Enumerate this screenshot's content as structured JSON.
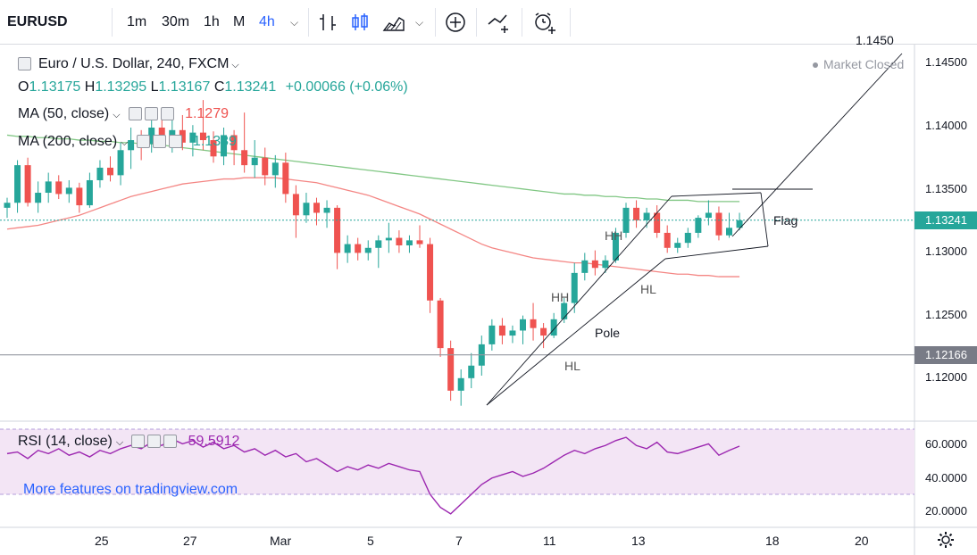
{
  "toolbar": {
    "symbol": "EURUSD",
    "intervals": [
      "1m",
      "30m",
      "1h",
      "M",
      "4h"
    ],
    "active_interval": "4h"
  },
  "legend": {
    "title": "Euro / U.S. Dollar, 240, FXCM",
    "ohlc": {
      "o_label": "O",
      "o": "1.13175",
      "h_label": "H",
      "h": "1.13295",
      "l_label": "L",
      "l": "1.13167",
      "c_label": "C",
      "c": "1.13241",
      "change": "+0.00066 (+0.06%)"
    },
    "ma50": {
      "label": "MA (50, close)",
      "value": "1.1279"
    },
    "ma200": {
      "label": "MA (200, close)",
      "value": "1.1339"
    },
    "rsi": {
      "label": "RSI (14, close)",
      "value": "59.5912"
    }
  },
  "status": {
    "market": "Market Closed"
  },
  "promo": {
    "text": "More features on tradingview.com"
  },
  "annotations": {
    "target": "1.1450",
    "flag": "Flag",
    "pole": "Pole",
    "hh1": "HH",
    "hh2": "HH",
    "hl1": "HL",
    "hl2": "HL"
  },
  "price_axis": {
    "ticks": [
      "1.14500",
      "1.14000",
      "1.13500",
      "1.13000",
      "1.12500",
      "1.12000"
    ],
    "last_price": "1.13241",
    "line_price": "1.12166"
  },
  "rsi_axis": {
    "ticks": [
      "60.0000",
      "40.0000",
      "20.0000"
    ]
  },
  "time_axis": {
    "ticks": [
      "25",
      "27",
      "Mar",
      "5",
      "7",
      "11",
      "13",
      "18",
      "20"
    ]
  },
  "colors": {
    "up": "#26a69a",
    "down": "#ef5350",
    "ma50": "#ef5350",
    "ma200": "#4caf50",
    "rsi": "#9c27b0",
    "accent": "#2962ff"
  },
  "chart_data": {
    "type": "candlestick",
    "title": "Euro / U.S. Dollar, 240, FXCM",
    "ylim": [
      1.1165,
      1.1465
    ],
    "candles": [
      {
        "t": "Feb-22",
        "o": 1.1334,
        "h": 1.1342,
        "l": 1.1326,
        "c": 1.1338
      },
      {
        "t": "Feb-22",
        "o": 1.1338,
        "h": 1.1372,
        "l": 1.133,
        "c": 1.1368
      },
      {
        "t": "Feb-22",
        "o": 1.1368,
        "h": 1.1374,
        "l": 1.1335,
        "c": 1.1338
      },
      {
        "t": "Feb-25",
        "o": 1.1338,
        "h": 1.1355,
        "l": 1.133,
        "c": 1.1346
      },
      {
        "t": "Feb-25",
        "o": 1.1346,
        "h": 1.1362,
        "l": 1.1338,
        "c": 1.1355
      },
      {
        "t": "Feb-25",
        "o": 1.1355,
        "h": 1.136,
        "l": 1.1341,
        "c": 1.1345
      },
      {
        "t": "Feb-25",
        "o": 1.1345,
        "h": 1.1356,
        "l": 1.1338,
        "c": 1.135
      },
      {
        "t": "Feb-25",
        "o": 1.135,
        "h": 1.1354,
        "l": 1.133,
        "c": 1.1336
      },
      {
        "t": "Feb-26",
        "o": 1.1336,
        "h": 1.1362,
        "l": 1.1334,
        "c": 1.1356
      },
      {
        "t": "Feb-26",
        "o": 1.1356,
        "h": 1.1372,
        "l": 1.135,
        "c": 1.1366
      },
      {
        "t": "Feb-26",
        "o": 1.1366,
        "h": 1.1375,
        "l": 1.1355,
        "c": 1.136
      },
      {
        "t": "Feb-26",
        "o": 1.136,
        "h": 1.1386,
        "l": 1.1352,
        "c": 1.138
      },
      {
        "t": "Feb-26",
        "o": 1.138,
        "h": 1.1398,
        "l": 1.1365,
        "c": 1.1388
      },
      {
        "t": "Feb-26",
        "o": 1.1388,
        "h": 1.1396,
        "l": 1.1372,
        "c": 1.1385
      },
      {
        "t": "Feb-27",
        "o": 1.1385,
        "h": 1.1405,
        "l": 1.1378,
        "c": 1.1398
      },
      {
        "t": "Feb-27",
        "o": 1.1398,
        "h": 1.1412,
        "l": 1.1385,
        "c": 1.139
      },
      {
        "t": "Feb-27",
        "o": 1.139,
        "h": 1.1404,
        "l": 1.1378,
        "c": 1.1396
      },
      {
        "t": "Feb-27",
        "o": 1.1396,
        "h": 1.1408,
        "l": 1.138,
        "c": 1.1386
      },
      {
        "t": "Feb-28",
        "o": 1.1386,
        "h": 1.14,
        "l": 1.1375,
        "c": 1.1394
      },
      {
        "t": "Feb-28",
        "o": 1.1394,
        "h": 1.142,
        "l": 1.138,
        "c": 1.1388
      },
      {
        "t": "Feb-28",
        "o": 1.1388,
        "h": 1.1395,
        "l": 1.137,
        "c": 1.1375
      },
      {
        "t": "Feb-28",
        "o": 1.1375,
        "h": 1.1398,
        "l": 1.1368,
        "c": 1.1392
      },
      {
        "t": "Mar-01",
        "o": 1.1392,
        "h": 1.1396,
        "l": 1.1368,
        "c": 1.138
      },
      {
        "t": "Mar-01",
        "o": 1.138,
        "h": 1.141,
        "l": 1.1362,
        "c": 1.1368
      },
      {
        "t": "Mar-01",
        "o": 1.1368,
        "h": 1.1388,
        "l": 1.1358,
        "c": 1.1374
      },
      {
        "t": "Mar-04",
        "o": 1.1374,
        "h": 1.1382,
        "l": 1.1352,
        "c": 1.136
      },
      {
        "t": "Mar-04",
        "o": 1.136,
        "h": 1.1376,
        "l": 1.135,
        "c": 1.137
      },
      {
        "t": "Mar-04",
        "o": 1.137,
        "h": 1.1378,
        "l": 1.1338,
        "c": 1.1345
      },
      {
        "t": "Mar-05",
        "o": 1.1345,
        "h": 1.1352,
        "l": 1.131,
        "c": 1.1328
      },
      {
        "t": "Mar-05",
        "o": 1.1328,
        "h": 1.1346,
        "l": 1.1322,
        "c": 1.1338
      },
      {
        "t": "Mar-05",
        "o": 1.1338,
        "h": 1.1342,
        "l": 1.132,
        "c": 1.133
      },
      {
        "t": "Mar-05",
        "o": 1.133,
        "h": 1.134,
        "l": 1.1318,
        "c": 1.1334
      },
      {
        "t": "Mar-06",
        "o": 1.1334,
        "h": 1.1336,
        "l": 1.1285,
        "c": 1.1298
      },
      {
        "t": "Mar-06",
        "o": 1.1298,
        "h": 1.1312,
        "l": 1.129,
        "c": 1.1305
      },
      {
        "t": "Mar-06",
        "o": 1.1305,
        "h": 1.131,
        "l": 1.1292,
        "c": 1.1298
      },
      {
        "t": "Mar-06",
        "o": 1.1298,
        "h": 1.1308,
        "l": 1.1292,
        "c": 1.1302
      },
      {
        "t": "Mar-07",
        "o": 1.1302,
        "h": 1.1312,
        "l": 1.1286,
        "c": 1.1308
      },
      {
        "t": "Mar-07",
        "o": 1.1308,
        "h": 1.1322,
        "l": 1.1298,
        "c": 1.131
      },
      {
        "t": "Mar-07",
        "o": 1.131,
        "h": 1.1316,
        "l": 1.1298,
        "c": 1.1304
      },
      {
        "t": "Mar-07",
        "o": 1.1304,
        "h": 1.1312,
        "l": 1.1298,
        "c": 1.1308
      },
      {
        "t": "Mar-07",
        "o": 1.1308,
        "h": 1.132,
        "l": 1.1302,
        "c": 1.1305
      },
      {
        "t": "Mar-07",
        "o": 1.1305,
        "h": 1.131,
        "l": 1.125,
        "c": 1.126
      },
      {
        "t": "Mar-08",
        "o": 1.126,
        "h": 1.1262,
        "l": 1.1215,
        "c": 1.1222
      },
      {
        "t": "Mar-08",
        "o": 1.1222,
        "h": 1.1228,
        "l": 1.118,
        "c": 1.1188
      },
      {
        "t": "Mar-08",
        "o": 1.1188,
        "h": 1.1205,
        "l": 1.1176,
        "c": 1.1198
      },
      {
        "t": "Mar-08",
        "o": 1.1198,
        "h": 1.1218,
        "l": 1.119,
        "c": 1.1208
      },
      {
        "t": "Mar-11",
        "o": 1.1208,
        "h": 1.1232,
        "l": 1.12,
        "c": 1.1225
      },
      {
        "t": "Mar-11",
        "o": 1.1225,
        "h": 1.1245,
        "l": 1.122,
        "c": 1.124
      },
      {
        "t": "Mar-11",
        "o": 1.124,
        "h": 1.1246,
        "l": 1.1225,
        "c": 1.1232
      },
      {
        "t": "Mar-11",
        "o": 1.1232,
        "h": 1.124,
        "l": 1.1226,
        "c": 1.1236
      },
      {
        "t": "Mar-11",
        "o": 1.1236,
        "h": 1.1248,
        "l": 1.1225,
        "c": 1.1245
      },
      {
        "t": "Mar-12",
        "o": 1.1245,
        "h": 1.1258,
        "l": 1.1228,
        "c": 1.1238
      },
      {
        "t": "Mar-12",
        "o": 1.1238,
        "h": 1.1242,
        "l": 1.1222,
        "c": 1.1232
      },
      {
        "t": "Mar-12",
        "o": 1.1232,
        "h": 1.125,
        "l": 1.123,
        "c": 1.1245
      },
      {
        "t": "Mar-12",
        "o": 1.1245,
        "h": 1.1262,
        "l": 1.1242,
        "c": 1.1258
      },
      {
        "t": "Mar-12",
        "o": 1.1258,
        "h": 1.129,
        "l": 1.125,
        "c": 1.1282
      },
      {
        "t": "Mar-13",
        "o": 1.1282,
        "h": 1.1298,
        "l": 1.1276,
        "c": 1.1292
      },
      {
        "t": "Mar-13",
        "o": 1.1292,
        "h": 1.13,
        "l": 1.128,
        "c": 1.1286
      },
      {
        "t": "Mar-13",
        "o": 1.1286,
        "h": 1.1296,
        "l": 1.1282,
        "c": 1.1292
      },
      {
        "t": "Mar-13",
        "o": 1.1292,
        "h": 1.1318,
        "l": 1.129,
        "c": 1.1314
      },
      {
        "t": "Mar-14",
        "o": 1.1314,
        "h": 1.1338,
        "l": 1.131,
        "c": 1.1334
      },
      {
        "t": "Mar-14",
        "o": 1.1334,
        "h": 1.134,
        "l": 1.1318,
        "c": 1.1324
      },
      {
        "t": "Mar-14",
        "o": 1.1324,
        "h": 1.1334,
        "l": 1.1318,
        "c": 1.133
      },
      {
        "t": "Mar-14",
        "o": 1.133,
        "h": 1.1336,
        "l": 1.131,
        "c": 1.1314
      },
      {
        "t": "Mar-15",
        "o": 1.1314,
        "h": 1.132,
        "l": 1.1298,
        "c": 1.1302
      },
      {
        "t": "Mar-15",
        "o": 1.1302,
        "h": 1.131,
        "l": 1.1298,
        "c": 1.1306
      },
      {
        "t": "Mar-15",
        "o": 1.1306,
        "h": 1.1318,
        "l": 1.1302,
        "c": 1.1314
      },
      {
        "t": "Mar-15",
        "o": 1.1314,
        "h": 1.1328,
        "l": 1.131,
        "c": 1.1326
      },
      {
        "t": "Mar-15",
        "o": 1.1326,
        "h": 1.134,
        "l": 1.132,
        "c": 1.133
      },
      {
        "t": "Mar-15",
        "o": 1.133,
        "h": 1.1335,
        "l": 1.1308,
        "c": 1.1312
      },
      {
        "t": "Mar-15",
        "o": 1.1312,
        "h": 1.133,
        "l": 1.131,
        "c": 1.1318
      },
      {
        "t": "Mar-15",
        "o": 1.1318,
        "h": 1.133,
        "l": 1.1316,
        "c": 1.1324
      }
    ],
    "series": [
      {
        "name": "MA (50, close)",
        "values_start_index": 0,
        "values": [
          1.1317,
          1.1318,
          1.1319,
          1.132,
          1.1322,
          1.1324,
          1.1326,
          1.1328,
          1.1331,
          1.1334,
          1.1337,
          1.134,
          1.1343,
          1.1345,
          1.1347,
          1.1349,
          1.1351,
          1.1353,
          1.1354,
          1.1355,
          1.1356,
          1.1357,
          1.1357,
          1.1358,
          1.1358,
          1.1358,
          1.1358,
          1.1357,
          1.1356,
          1.1355,
          1.1354,
          1.1352,
          1.135,
          1.1348,
          1.1346,
          1.1344,
          1.1341,
          1.1338,
          1.1335,
          1.1332,
          1.1329,
          1.1325,
          1.1321,
          1.1317,
          1.1313,
          1.1309,
          1.1305,
          1.1302,
          1.13,
          1.1298,
          1.1296,
          1.1294,
          1.1293,
          1.1292,
          1.1291,
          1.129,
          1.129,
          1.1289,
          1.1288,
          1.1287,
          1.1286,
          1.1285,
          1.1284,
          1.1283,
          1.1282,
          1.1281,
          1.1281,
          1.128,
          1.128,
          1.1279,
          1.1279,
          1.1279
        ]
      },
      {
        "name": "MA (200, close)",
        "values_start_index": 0,
        "values": [
          1.1392,
          1.1391,
          1.1391,
          1.139,
          1.139,
          1.1389,
          1.1389,
          1.1388,
          1.1388,
          1.1387,
          1.1387,
          1.1386,
          1.1386,
          1.1385,
          1.1385,
          1.1384,
          1.1383,
          1.1382,
          1.1381,
          1.138,
          1.1379,
          1.1378,
          1.1377,
          1.1376,
          1.1375,
          1.1374,
          1.1373,
          1.1372,
          1.1371,
          1.137,
          1.1369,
          1.1368,
          1.1367,
          1.1366,
          1.1365,
          1.1364,
          1.1363,
          1.1362,
          1.1361,
          1.136,
          1.1359,
          1.1358,
          1.1357,
          1.1356,
          1.1355,
          1.1354,
          1.1353,
          1.1352,
          1.1351,
          1.135,
          1.1349,
          1.1348,
          1.1347,
          1.1346,
          1.1345,
          1.1345,
          1.1344,
          1.1344,
          1.1343,
          1.1343,
          1.1342,
          1.1342,
          1.1341,
          1.1341,
          1.134,
          1.134,
          1.134,
          1.1339,
          1.1339,
          1.1339,
          1.1339,
          1.1339
        ]
      },
      {
        "name": "RSI (14, close)",
        "ylim": [
          15,
          70
        ],
        "values": [
          55,
          56,
          52,
          57,
          55,
          58,
          54,
          56,
          53,
          57,
          55,
          58,
          60,
          58,
          62,
          60,
          64,
          61,
          63,
          59,
          62,
          58,
          60,
          56,
          58,
          54,
          57,
          53,
          55,
          50,
          52,
          48,
          44,
          47,
          45,
          48,
          46,
          49,
          47,
          45,
          44,
          30,
          22,
          18,
          24,
          30,
          36,
          40,
          42,
          44,
          41,
          43,
          46,
          50,
          54,
          57,
          55,
          58,
          60,
          63,
          65,
          60,
          58,
          62,
          56,
          55,
          57,
          59,
          61,
          54,
          57,
          59.5912
        ]
      }
    ],
    "levels": [
      {
        "label": "line_price",
        "value": 1.12166
      },
      {
        "label": "last_price",
        "value": 1.13241
      },
      {
        "label": "target",
        "value": 1.145
      }
    ],
    "rsi_bands": [
      30,
      70
    ]
  }
}
